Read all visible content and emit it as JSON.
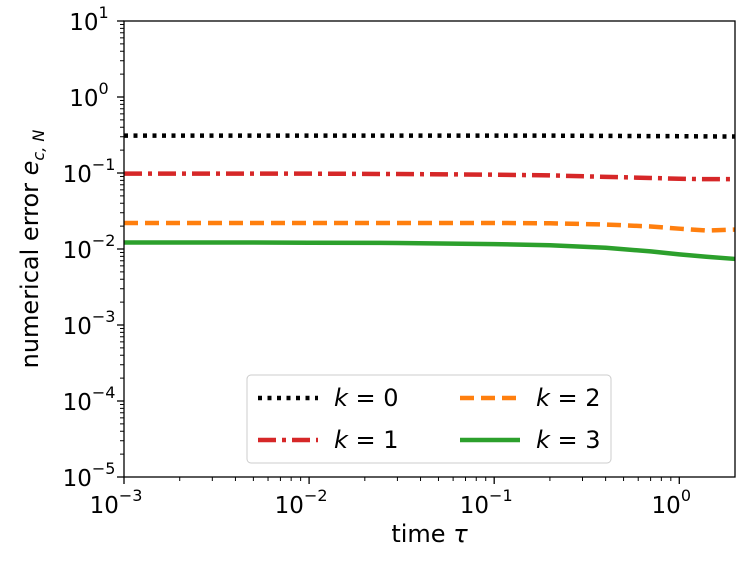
{
  "chart_data": {
    "type": "line",
    "xscale": "log",
    "yscale": "log",
    "xlim": [
      0.001,
      2
    ],
    "ylim": [
      1e-05,
      10
    ],
    "xlabel": "time",
    "xlabel_symbol": "τ",
    "ylabel": "numerical error",
    "ylabel_symbol": "e",
    "ylabel_subscript": "c, N",
    "grid": false,
    "legend_position": "lower-center",
    "x_ticks": [
      {
        "value": 0.001,
        "base": "10",
        "exp": "−3"
      },
      {
        "value": 0.01,
        "base": "10",
        "exp": "−2"
      },
      {
        "value": 0.1,
        "base": "10",
        "exp": "−1"
      },
      {
        "value": 1,
        "base": "10",
        "exp": "0"
      }
    ],
    "y_ticks": [
      {
        "value": 1e-05,
        "base": "10",
        "exp": "−5"
      },
      {
        "value": 0.0001,
        "base": "10",
        "exp": "−4"
      },
      {
        "value": 0.001,
        "base": "10",
        "exp": "−3"
      },
      {
        "value": 0.01,
        "base": "10",
        "exp": "−2"
      },
      {
        "value": 0.1,
        "base": "10",
        "exp": "−1"
      },
      {
        "value": 1,
        "base": "10",
        "exp": "0"
      },
      {
        "value": 10,
        "base": "10",
        "exp": "1"
      }
    ],
    "x": [
      0.001,
      0.003,
      0.01,
      0.03,
      0.1,
      0.2,
      0.4,
      0.7,
      1.0,
      1.4,
      2.0
    ],
    "series": [
      {
        "name": "k = 0",
        "k": "0",
        "color": "#000000",
        "style": "dotted",
        "values": [
          0.31,
          0.31,
          0.31,
          0.31,
          0.31,
          0.31,
          0.308,
          0.306,
          0.305,
          0.303,
          0.302
        ]
      },
      {
        "name": "k = 1",
        "k": "1",
        "color": "#d62728",
        "style": "dashdot",
        "values": [
          0.098,
          0.098,
          0.098,
          0.097,
          0.095,
          0.093,
          0.089,
          0.086,
          0.084,
          0.083,
          0.083
        ]
      },
      {
        "name": "k = 2",
        "k": "2",
        "color": "#ff7f0e",
        "style": "dashed",
        "values": [
          0.022,
          0.022,
          0.022,
          0.022,
          0.022,
          0.0218,
          0.021,
          0.0198,
          0.0185,
          0.0175,
          0.018
        ]
      },
      {
        "name": "k = 3",
        "k": "3",
        "color": "#2ca02c",
        "style": "solid",
        "values": [
          0.0122,
          0.0122,
          0.0121,
          0.012,
          0.0116,
          0.0112,
          0.0104,
          0.0093,
          0.0085,
          0.0079,
          0.0074
        ]
      }
    ]
  }
}
